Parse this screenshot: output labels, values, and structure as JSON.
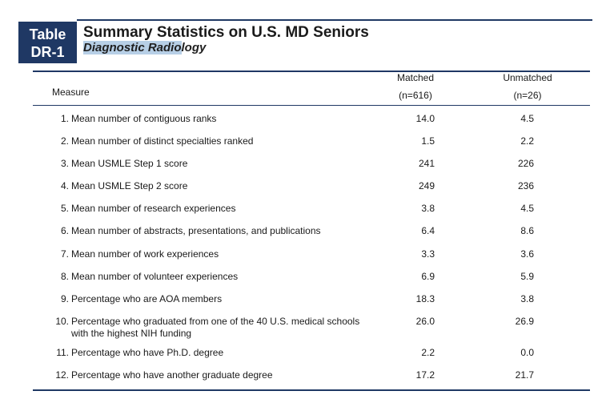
{
  "badge": {
    "line1": "Table",
    "line2": "DR-1"
  },
  "title": "Summary Statistics on U.S. MD Seniors",
  "subtitle_highlighted": "Diagnostic Radio",
  "subtitle_rest": "logy",
  "headers": {
    "measure": "Measure",
    "matched": "Matched",
    "matched_n": "(n=616)",
    "unmatched": "Unmatched",
    "unmatched_n": "(n=26)"
  },
  "rows": [
    {
      "num": "1.",
      "label": "Mean number of contiguous ranks",
      "matched": "14.0",
      "unmatched": "4.5"
    },
    {
      "num": "2.",
      "label": "Mean number of distinct specialties ranked",
      "matched": "1.5",
      "unmatched": "2.2"
    },
    {
      "num": "3.",
      "label": "Mean USMLE Step 1 score",
      "matched": "241",
      "unmatched": "226"
    },
    {
      "num": "4.",
      "label": "Mean USMLE Step 2 score",
      "matched": "249",
      "unmatched": "236"
    },
    {
      "num": "5.",
      "label": "Mean number of research experiences",
      "matched": "3.8",
      "unmatched": "4.5"
    },
    {
      "num": "6.",
      "label": "Mean number of abstracts, presentations, and publications",
      "matched": "6.4",
      "unmatched": "8.6"
    },
    {
      "num": "7.",
      "label": "Mean number of work experiences",
      "matched": "3.3",
      "unmatched": "3.6"
    },
    {
      "num": "8.",
      "label": "Mean number of volunteer experiences",
      "matched": "6.9",
      "unmatched": "5.9"
    },
    {
      "num": "9.",
      "label": "Percentage who are AOA members",
      "matched": "18.3",
      "unmatched": "3.8"
    },
    {
      "num": "10.",
      "label": "Percentage who graduated from one of the 40 U.S. medical schools with the highest NIH funding",
      "matched": "26.0",
      "unmatched": "26.9"
    },
    {
      "num": "11.",
      "label": "Percentage who have Ph.D. degree",
      "matched": "2.2",
      "unmatched": "0.0"
    },
    {
      "num": "12.",
      "label": "Percentage who have another graduate degree",
      "matched": "17.2",
      "unmatched": "21.7"
    }
  ]
}
